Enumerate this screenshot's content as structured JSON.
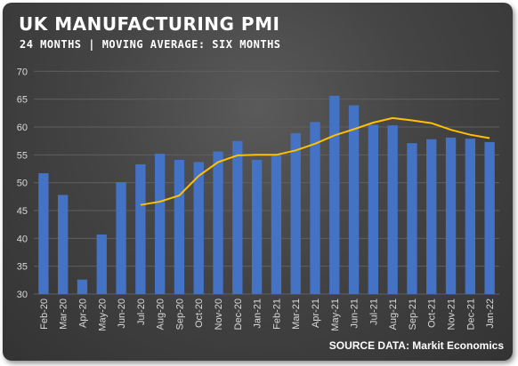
{
  "title": "UK MANUFACTURING PMI",
  "subtitle": "24 MONTHS | MOVING AVERAGE: SIX MONTHS",
  "source": "SOURCE DATA: Markit Economics",
  "colors": {
    "bar": "#4472C4",
    "moving_average": "#FFC000",
    "background": "#404040",
    "grid": "#5f5f5f",
    "text": "#FFFFFF"
  },
  "chart_data": {
    "type": "bar",
    "categories": [
      "Feb-20",
      "Mar-20",
      "Apr-20",
      "May-20",
      "Jun-20",
      "Jul-20",
      "Aug-20",
      "Sep-20",
      "Oct-20",
      "Nov-20",
      "Dec-20",
      "Jan-21",
      "Feb-21",
      "Mar-21",
      "Apr-21",
      "May-21",
      "Jun-21",
      "Jul-21",
      "Aug-21",
      "Sep-21",
      "Oct-21",
      "Nov-21",
      "Dec-21",
      "Jan-22"
    ],
    "series": [
      {
        "type": "bar",
        "values": [
          51.7,
          47.8,
          32.6,
          40.7,
          50.1,
          53.3,
          55.2,
          54.1,
          53.7,
          55.6,
          57.5,
          54.1,
          55.1,
          58.9,
          60.9,
          65.6,
          63.9,
          60.4,
          60.3,
          57.1,
          57.8,
          58.1,
          57.9,
          57.3
        ]
      },
      {
        "type": "line",
        "values": [
          null,
          null,
          null,
          null,
          null,
          46.0,
          46.6,
          47.7,
          51.2,
          53.7,
          54.9,
          55.0,
          55.0,
          55.8,
          57.0,
          58.5,
          59.6,
          60.8,
          61.6,
          61.2,
          60.7,
          59.5,
          58.6,
          58.0
        ]
      }
    ],
    "ylim": [
      30,
      70
    ],
    "yticks": [
      30,
      35,
      40,
      45,
      50,
      55,
      60,
      65,
      70
    ],
    "grid": true
  }
}
